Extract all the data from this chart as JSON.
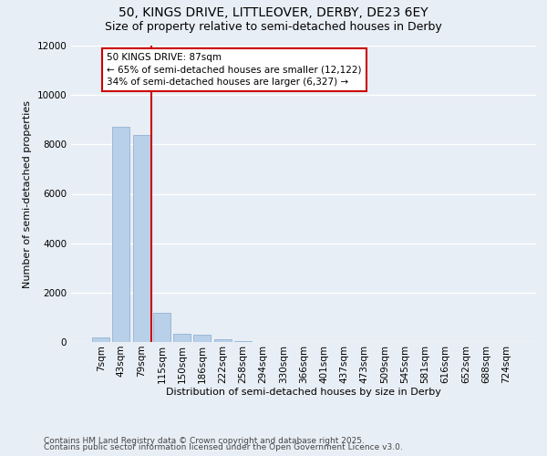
{
  "title_line1": "50, KINGS DRIVE, LITTLEOVER, DERBY, DE23 6EY",
  "title_line2": "Size of property relative to semi-detached houses in Derby",
  "xlabel": "Distribution of semi-detached houses by size in Derby",
  "ylabel": "Number of semi-detached properties",
  "categories": [
    "7sqm",
    "43sqm",
    "79sqm",
    "115sqm",
    "150sqm",
    "186sqm",
    "222sqm",
    "258sqm",
    "294sqm",
    "330sqm",
    "366sqm",
    "401sqm",
    "437sqm",
    "473sqm",
    "509sqm",
    "545sqm",
    "581sqm",
    "616sqm",
    "652sqm",
    "688sqm",
    "724sqm"
  ],
  "values": [
    200,
    8700,
    8400,
    1200,
    350,
    295,
    100,
    50,
    0,
    0,
    0,
    0,
    0,
    0,
    0,
    0,
    0,
    0,
    0,
    0,
    0
  ],
  "bar_color": "#b8d0e8",
  "bar_edgecolor": "#88aad0",
  "red_line_x": 2.5,
  "annotation_text": "50 KINGS DRIVE: 87sqm\n← 65% of semi-detached houses are smaller (12,122)\n34% of semi-detached houses are larger (6,327) →",
  "annotation_box_color": "#ffffff",
  "annotation_box_edgecolor": "#cc0000",
  "red_line_color": "#cc0000",
  "ylim": [
    0,
    12000
  ],
  "yticks": [
    0,
    2000,
    4000,
    6000,
    8000,
    10000,
    12000
  ],
  "background_color": "#e8eef5",
  "grid_color": "#ffffff",
  "footer_line1": "Contains HM Land Registry data © Crown copyright and database right 2025.",
  "footer_line2": "Contains public sector information licensed under the Open Government Licence v3.0.",
  "title1_fontsize": 10,
  "title2_fontsize": 9,
  "axis_label_fontsize": 8,
  "tick_fontsize": 7.5,
  "footer_fontsize": 6.5,
  "ann_fontsize": 7.5
}
